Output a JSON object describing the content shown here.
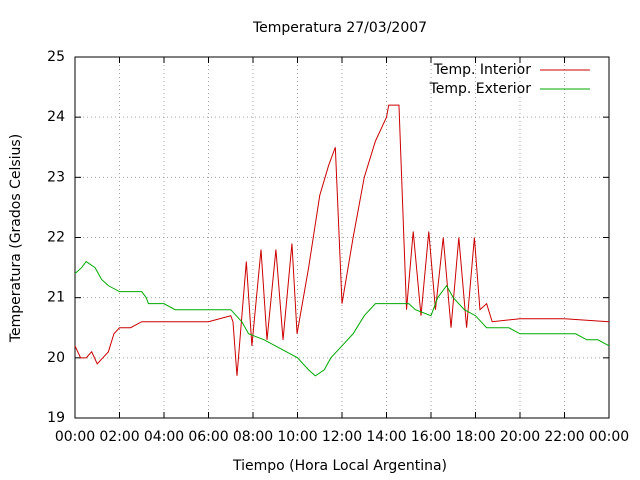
{
  "chart_data": {
    "type": "line",
    "title": "Temperatura 27/03/2007",
    "x_label": "Tiempo (Hora Local Argentina)",
    "y_label": "Temperatura (Grados Celsius)",
    "xlim": [
      0,
      24
    ],
    "xticks": [
      {
        "value": 0,
        "label": "00:00"
      },
      {
        "value": 2,
        "label": "02:00"
      },
      {
        "value": 4,
        "label": "04:00"
      },
      {
        "value": 6,
        "label": "06:00"
      },
      {
        "value": 8,
        "label": "08:00"
      },
      {
        "value": 10,
        "label": "10:00"
      },
      {
        "value": 12,
        "label": "12:00"
      },
      {
        "value": 14,
        "label": "14:00"
      },
      {
        "value": 16,
        "label": "16:00"
      },
      {
        "value": 18,
        "label": "18:00"
      },
      {
        "value": 20,
        "label": "20:00"
      },
      {
        "value": 22,
        "label": "22:00"
      },
      {
        "value": 24,
        "label": "00:00"
      }
    ],
    "ylim": [
      19,
      25
    ],
    "yticks": [
      19,
      20,
      21,
      22,
      23,
      24,
      25
    ],
    "grid": true,
    "legend": "top-right",
    "series": [
      {
        "name": "Temp. Interior",
        "color": "#cc0000",
        "x": [
          0,
          0.25,
          0.5,
          0.75,
          1.0,
          1.25,
          1.5,
          1.75,
          2.0,
          2.5,
          3.0,
          4.0,
          5.0,
          6.0,
          7.0,
          7.1,
          7.28,
          7.7,
          7.95,
          8.36,
          8.63,
          9.03,
          9.35,
          9.75,
          9.98,
          10.5,
          11.0,
          11.4,
          11.7,
          12.0,
          12.5,
          13.0,
          13.5,
          14.0,
          14.1,
          14.56,
          14.9,
          15.2,
          15.55,
          15.9,
          16.2,
          16.55,
          16.9,
          17.25,
          17.6,
          17.95,
          18.2,
          18.5,
          18.75,
          20,
          22,
          24
        ],
        "values": [
          20.2,
          20.0,
          20.0,
          20.1,
          19.9,
          20.0,
          20.1,
          20.4,
          20.5,
          20.5,
          20.6,
          20.6,
          20.6,
          20.6,
          20.7,
          20.6,
          19.7,
          21.6,
          20.2,
          21.8,
          20.3,
          21.8,
          20.3,
          21.9,
          20.4,
          21.5,
          22.7,
          23.2,
          23.5,
          20.9,
          22.0,
          23.0,
          23.6,
          24.0,
          24.2,
          24.2,
          20.8,
          22.1,
          20.7,
          22.1,
          20.8,
          22.0,
          20.5,
          22.0,
          20.5,
          22.0,
          20.8,
          20.9,
          20.6,
          20.65,
          20.65,
          20.6
        ]
      },
      {
        "name": "Temp. Exterior",
        "color": "#00aa00",
        "x": [
          0,
          0.3,
          0.5,
          0.9,
          1.2,
          1.5,
          2,
          3,
          3.2,
          3.3,
          4,
          4.5,
          6,
          7,
          7.5,
          7.8,
          8.5,
          9,
          9.5,
          10,
          10.5,
          10.8,
          11.2,
          11.5,
          12,
          12.5,
          13,
          13.5,
          14,
          15,
          15.3,
          16,
          16.3,
          16.7,
          17,
          17.5,
          18,
          18.5,
          19.5,
          20,
          22,
          22.5,
          23,
          23.5,
          24
        ],
        "values": [
          21.4,
          21.5,
          21.6,
          21.5,
          21.3,
          21.2,
          21.1,
          21.1,
          21.0,
          20.9,
          20.9,
          20.8,
          20.8,
          20.8,
          20.6,
          20.4,
          20.3,
          20.2,
          20.1,
          20.0,
          19.8,
          19.7,
          19.8,
          20.0,
          20.2,
          20.4,
          20.7,
          20.9,
          20.9,
          20.9,
          20.8,
          20.7,
          21.0,
          21.2,
          21.0,
          20.8,
          20.7,
          20.5,
          20.5,
          20.4,
          20.4,
          20.4,
          20.3,
          20.3,
          20.2
        ]
      }
    ]
  }
}
